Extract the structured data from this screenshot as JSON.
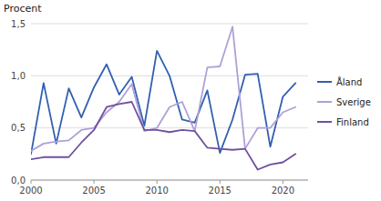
{
  "chart_data": {
    "type": "line",
    "y_label": "Procent",
    "x": [
      2000,
      2001,
      2002,
      2003,
      2004,
      2005,
      2006,
      2007,
      2008,
      2009,
      2010,
      2011,
      2012,
      2013,
      2014,
      2015,
      2016,
      2017,
      2018,
      2019,
      2020,
      2021
    ],
    "xlim": [
      2000,
      2022
    ],
    "xticks": [
      2000,
      2005,
      2010,
      2015,
      2020
    ],
    "ylim": [
      0.0,
      1.5
    ],
    "yticks": [
      {
        "value": 0.0,
        "label": "0,0"
      },
      {
        "value": 0.5,
        "label": "0,5"
      },
      {
        "value": 1.0,
        "label": "1,0"
      },
      {
        "value": 1.5,
        "label": "1,5"
      }
    ],
    "grid": "y",
    "legend": "right",
    "series": [
      {
        "name": "Åland",
        "color": "#3060b0",
        "values": [
          0.25,
          0.93,
          0.35,
          0.88,
          0.6,
          0.89,
          1.11,
          0.82,
          0.99,
          0.52,
          1.24,
          1.0,
          0.58,
          0.55,
          0.86,
          0.26,
          0.58,
          1.01,
          1.02,
          0.32,
          0.8,
          0.93
        ]
      },
      {
        "name": "Sverige",
        "color": "#b0a0d8",
        "values": [
          0.28,
          0.35,
          0.37,
          0.38,
          0.48,
          0.5,
          0.65,
          0.75,
          0.92,
          0.47,
          0.5,
          0.7,
          0.75,
          0.47,
          1.08,
          1.09,
          1.47,
          0.3,
          0.5,
          0.5,
          0.65,
          0.7
        ]
      },
      {
        "name": "Finland",
        "color": "#7050a0",
        "values": [
          0.2,
          0.22,
          0.22,
          0.22,
          0.36,
          0.48,
          0.7,
          0.73,
          0.75,
          0.48,
          0.48,
          0.46,
          0.48,
          0.47,
          0.31,
          0.3,
          0.29,
          0.3,
          0.1,
          0.15,
          0.17,
          0.25
        ]
      }
    ]
  }
}
